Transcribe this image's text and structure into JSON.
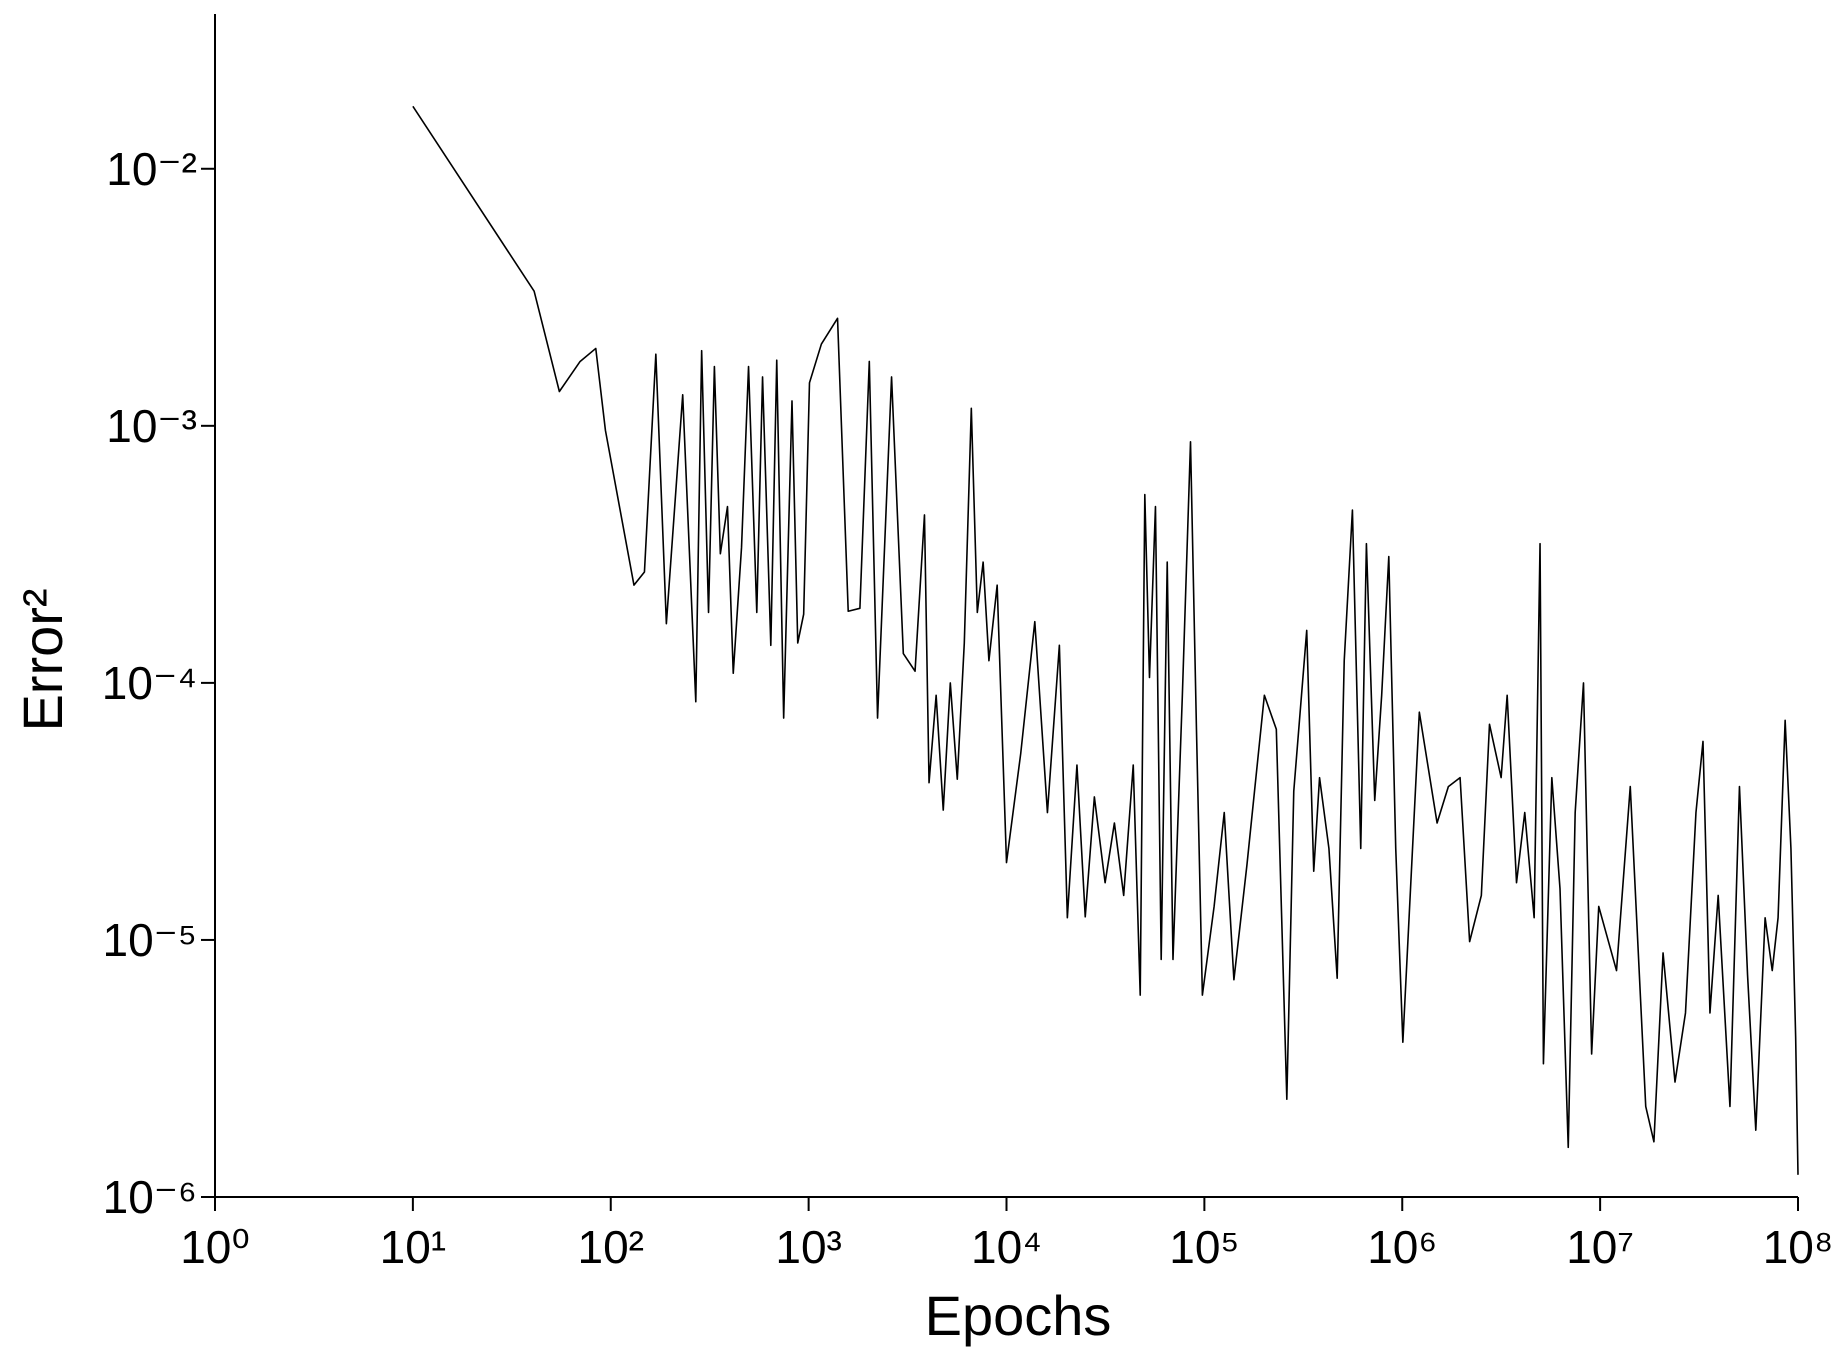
{
  "chart_data": {
    "type": "line",
    "x_label": "Epochs",
    "y_label": "Error²",
    "xscale": "log",
    "yscale": "log",
    "grid": false,
    "xlim": [
      1,
      100000000
    ],
    "ylim": [
      1e-06,
      0.04
    ],
    "xticks": [
      {
        "value": 1,
        "label": "10⁰"
      },
      {
        "value": 10,
        "label": "10¹"
      },
      {
        "value": 100,
        "label": "10²"
      },
      {
        "value": 1000,
        "label": "10³"
      },
      {
        "value": 10000,
        "label": "10⁴"
      },
      {
        "value": 100000,
        "label": "10⁵"
      },
      {
        "value": 1000000,
        "label": "10⁶"
      },
      {
        "value": 10000000,
        "label": "10⁷"
      },
      {
        "value": 100000000,
        "label": "10⁸"
      }
    ],
    "yticks": [
      {
        "value": 1e-06,
        "label": "10⁻⁶"
      },
      {
        "value": 1e-05,
        "label": "10⁻⁵"
      },
      {
        "value": 0.0001,
        "label": "10⁻⁴"
      },
      {
        "value": 0.001,
        "label": "10⁻³"
      },
      {
        "value": 0.01,
        "label": "10⁻²"
      }
    ],
    "series": [
      {
        "color": "#000000",
        "x": [
          10,
          41,
          55,
          70,
          84,
          94,
          131,
          148,
          169,
          191,
          231,
          269,
          288,
          312,
          334,
          358,
          389,
          416,
          458,
          497,
          547,
          585,
          644,
          690,
          748,
          824,
          881,
          944,
          1010,
          1160,
          1400,
          1585,
          1816,
          2026,
          2230,
          2625,
          3010,
          3450,
          3850,
          4060,
          4410,
          4790,
          5200,
          5640,
          6120,
          6640,
          7120,
          7620,
          8150,
          8970,
          10000,
          11800,
          13900,
          16100,
          18500,
          20300,
          22700,
          25000,
          27800,
          31500,
          35100,
          39100,
          43700,
          47400,
          50000,
          52800,
          56600,
          60500,
          64900,
          69400,
          77400,
          85100,
          91200,
          97700,
          112000,
          126000,
          141000,
          164000,
          201000,
          231000,
          261000,
          283000,
          329000,
          357000,
          382000,
          426000,
          469000,
          509000,
          560000,
          617000,
          659000,
          726000,
          787000,
          855000,
          927000,
          1007000,
          1220000,
          1500000,
          1710000,
          1960000,
          2190000,
          2510000,
          2760000,
          3160000,
          3390000,
          3780000,
          4160000,
          4640000,
          4970000,
          5170000,
          5700000,
          6270000,
          6900000,
          7480000,
          8240000,
          9060000,
          9840000,
          12100000,
          14200000,
          17000000,
          18700000,
          20800000,
          23900000,
          27000000,
          30500000,
          33100000,
          35900000,
          39500000,
          45300000,
          50600000,
          55600000,
          61200000,
          68200000,
          74100000,
          79300000,
          86100000,
          92100000,
          97300000,
          100000000
        ],
        "values": [
          0.0175,
          0.00334,
          0.00136,
          0.00178,
          0.002,
          0.00096,
          0.00024,
          0.00027,
          0.0019,
          0.00017,
          0.00132,
          8.45e-05,
          0.00196,
          0.000188,
          0.0017,
          0.000318,
          0.000485,
          0.000109,
          0.000336,
          0.0017,
          0.000188,
          0.00155,
          0.00014,
          0.0018,
          7.3e-05,
          0.00125,
          0.000143,
          0.000185,
          0.00147,
          0.00208,
          0.00262,
          0.00019,
          0.000195,
          0.00178,
          7.3e-05,
          0.00155,
          0.00013,
          0.000111,
          0.00045,
          4.09e-05,
          8.95e-05,
          3.2e-05,
          0.0001,
          4.22e-05,
          0.000143,
          0.00117,
          0.000188,
          0.000295,
          0.000122,
          0.00024,
          2e-05,
          5.31e-05,
          0.000173,
          3.13e-05,
          0.00014,
          1.22e-05,
          4.79e-05,
          1.23e-05,
          3.6e-05,
          1.67e-05,
          2.85e-05,
          1.49e-05,
          4.79e-05,
          6.1e-06,
          0.00054,
          0.000105,
          0.000485,
          8.4e-06,
          0.000295,
          8.4e-06,
          8.95e-05,
          0.000867,
          6.6e-05,
          6.1e-06,
          1.35e-05,
          3.13e-05,
          7e-06,
          1.95e-05,
          8.95e-05,
          6.6e-05,
          2.4e-06,
          3.79e-05,
          0.00016,
          1.85e-05,
          4.28e-05,
          2.27e-05,
          7.1e-06,
          0.000122,
          0.00047,
          2.27e-05,
          0.000348,
          3.49e-05,
          8.95e-05,
          0.00031,
          2.27e-05,
          4e-06,
          7.69e-05,
          2.85e-05,
          3.95e-05,
          4.28e-05,
          9.85e-06,
          1.49e-05,
          6.9e-05,
          4.28e-05,
          8.95e-05,
          1.67e-05,
          3.13e-05,
          1.22e-05,
          0.000348,
          3.3e-06,
          4.28e-05,
          1.58e-05,
          1.56e-06,
          3.13e-05,
          0.0001,
          3.6e-06,
          1.35e-05,
          7.6e-06,
          3.95e-05,
          2.25e-06,
          1.64e-06,
          8.9e-06,
          2.8e-06,
          5.2e-06,
          3.13e-05,
          5.92e-05,
          5.2e-06,
          1.49e-05,
          2.25e-06,
          3.95e-05,
          7.3e-06,
          1.82e-06,
          1.22e-05,
          7.6e-06,
          1.22e-05,
          7.15e-05,
          2.27e-05,
          4.2e-06,
          1.22e-06
        ]
      }
    ]
  }
}
